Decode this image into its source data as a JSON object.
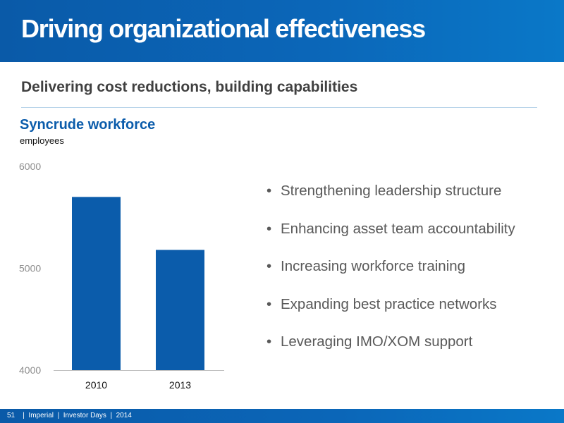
{
  "header": {
    "title": "Driving organizational effectiveness"
  },
  "subtitle": "Delivering cost reductions, building capabilities",
  "chart_data": {
    "type": "bar",
    "title": "Syncrude workforce",
    "unit_label": "employees",
    "categories": [
      "2010",
      "2013"
    ],
    "values": [
      5700,
      5180
    ],
    "yticks": [
      4000,
      5000,
      6000
    ],
    "ylim": [
      4000,
      6000
    ],
    "bar_color": "#0b5cab",
    "grid": false
  },
  "bullets": [
    "Strengthening leadership structure",
    "Enhancing asset team accountability",
    "Increasing workforce training",
    "Expanding best practice networks",
    "Leveraging IMO/XOM support"
  ],
  "footer": {
    "page_number": "51",
    "company": "Imperial",
    "event": "Investor Days",
    "year": "2014",
    "separator": "|"
  }
}
